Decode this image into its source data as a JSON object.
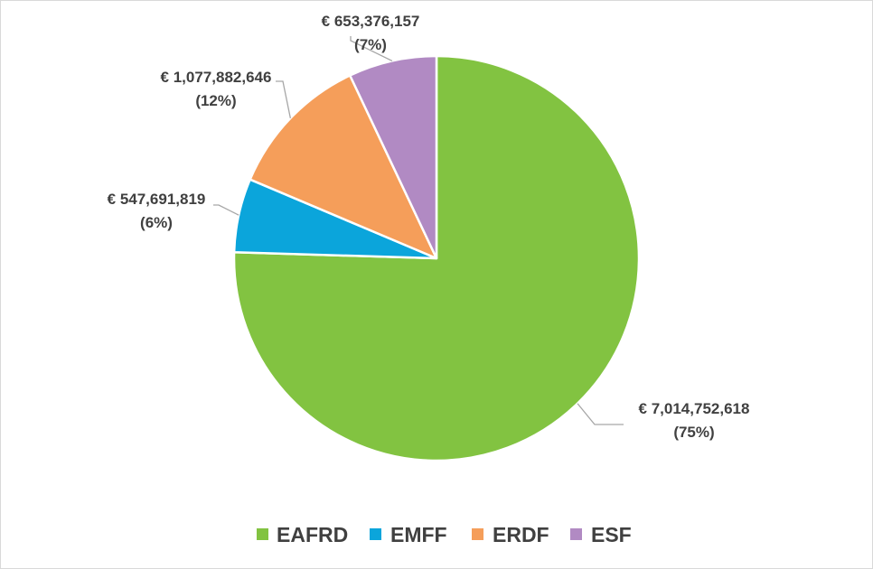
{
  "chart_data": {
    "type": "pie",
    "start_angle_deg": 0,
    "direction": "clockwise",
    "slices": [
      {
        "name": "EAFRD",
        "value": 7014752618,
        "label": "€ 7,014,752,618",
        "percent_label": "(75%)",
        "color": "#82c341"
      },
      {
        "name": "EMFF",
        "value": 547691819,
        "label": "€ 547,691,819",
        "percent_label": "(6%)",
        "color": "#0ba5db"
      },
      {
        "name": "ERDF",
        "value": 1077882646,
        "label": "€ 1,077,882,646",
        "percent_label": "(12%)",
        "color": "#f59e5a"
      },
      {
        "name": "ESF",
        "value": 653376157,
        "label": "€ 653,376,157",
        "percent_label": "(7%)",
        "color": "#b18ac3"
      }
    ],
    "legend": {
      "placement": "bottom",
      "entries": [
        "EAFRD",
        "EMFF",
        "ERDF",
        "ESF"
      ]
    },
    "border_color": "#ffffff",
    "text_color": "#404040",
    "leader_line_color": "#a6a6a6"
  }
}
